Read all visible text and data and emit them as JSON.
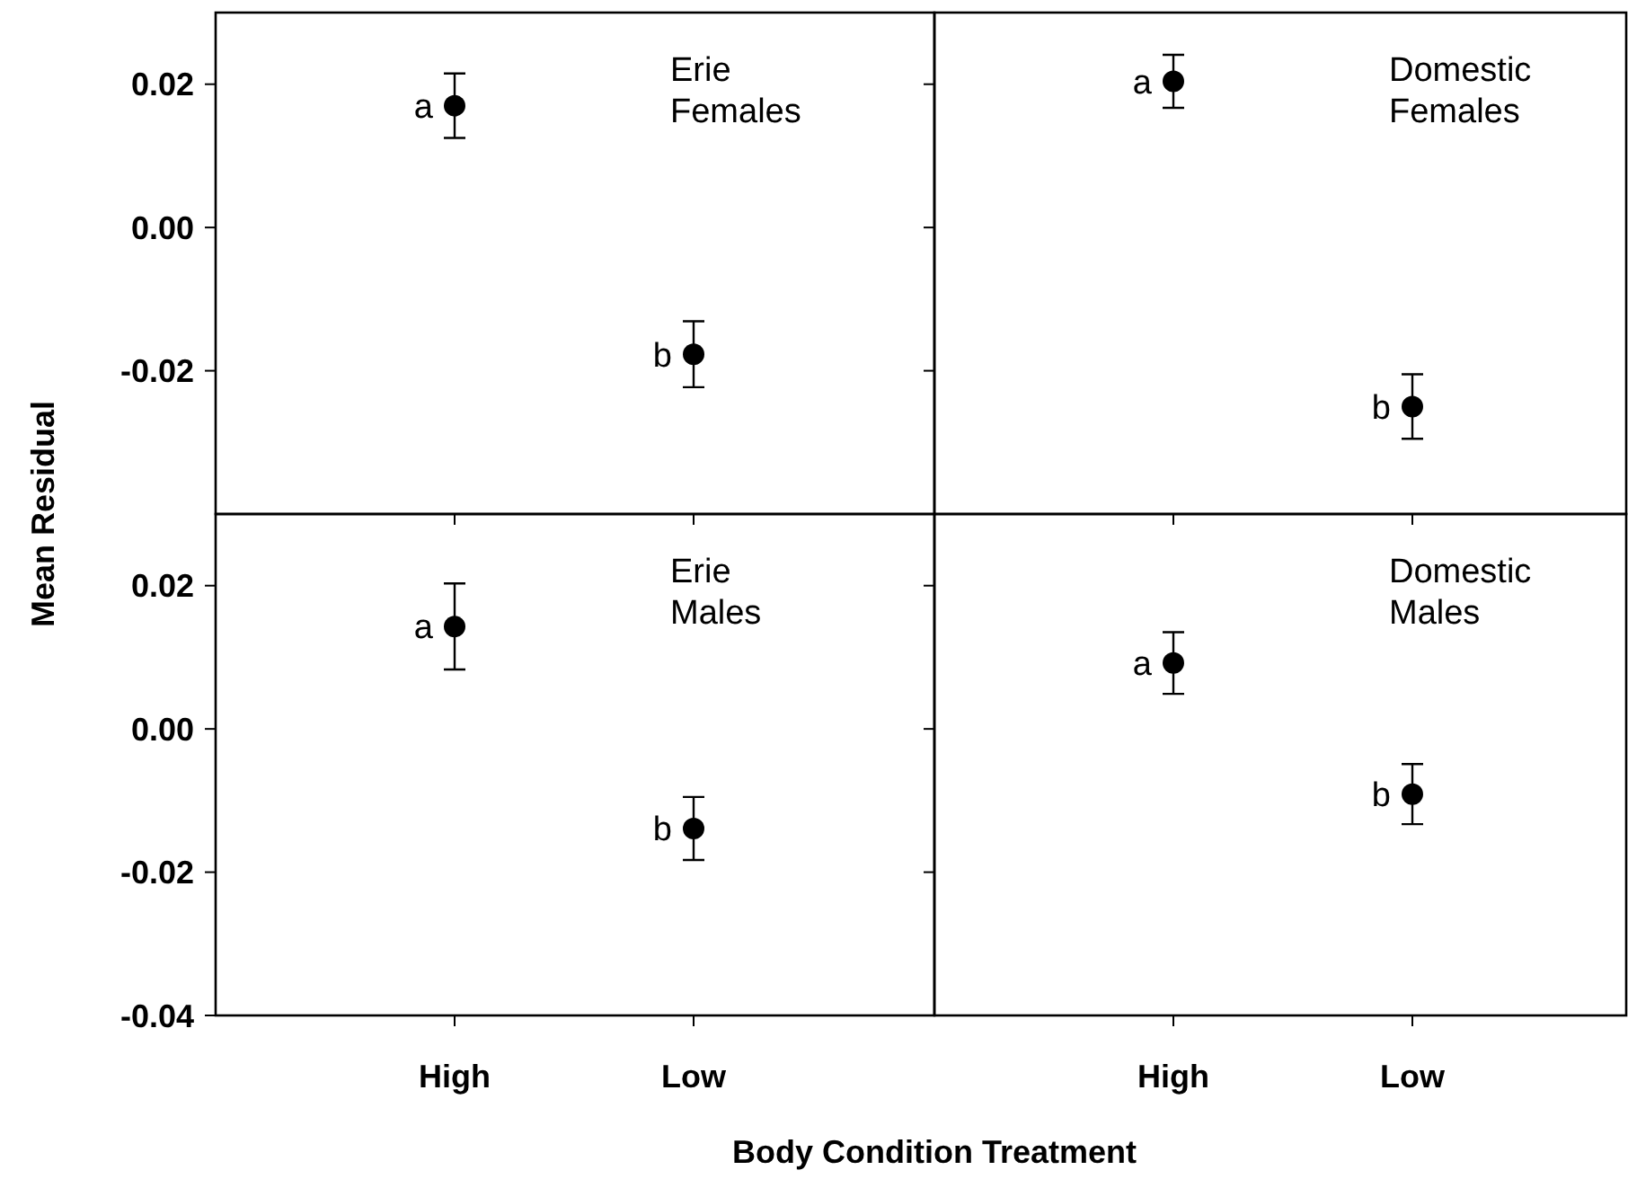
{
  "chart_data": [
    {
      "type": "scatter",
      "title": "Erie Females",
      "ylabel": "Mean Residual",
      "categories": [
        "High",
        "Low"
      ],
      "series": [
        {
          "color": "#000000",
          "values": [
            0.017,
            -0.0177
          ],
          "errors": [
            0.0045,
            0.0046
          ]
        }
      ],
      "ylim": [
        -0.04,
        0.03
      ],
      "yticks": [
        0.02,
        {
          "value": 0,
          "label": "0.00"
        },
        -0.02
      ],
      "tick_labels": "y",
      "marker": "circle",
      "annotations": [
        {
          "text": "a",
          "x": "High",
          "y": 0.017
        },
        {
          "text": "b",
          "x": "Low",
          "y": -0.0177
        }
      ]
    },
    {
      "type": "scatter",
      "title": "Domestic Females",
      "categories": [
        "High",
        "Low"
      ],
      "series": [
        {
          "color": "#000000",
          "values": [
            0.0204,
            -0.025
          ],
          "errors": [
            0.0037,
            0.0045
          ]
        }
      ],
      "ylim": [
        -0.04,
        0.03
      ],
      "yticks": [
        0.02,
        0,
        -0.02
      ],
      "tick_labels": false,
      "marker": "circle",
      "annotations": [
        {
          "text": "a",
          "x": "High",
          "y": 0.0204
        },
        {
          "text": "b",
          "x": "Low",
          "y": -0.025
        }
      ]
    },
    {
      "type": "scatter",
      "title": "Erie Males",
      "xlabel": "Body Condition Treatment",
      "categories": [
        "High",
        "Low"
      ],
      "series": [
        {
          "color": "#000000",
          "values": [
            0.0143,
            -0.0139
          ],
          "errors": [
            0.006,
            0.0044
          ]
        }
      ],
      "ylim": [
        -0.04,
        0.03
      ],
      "yticks": [
        0.02,
        {
          "value": 0,
          "label": "0.00"
        },
        -0.02,
        -0.04
      ],
      "marker": "circle",
      "annotations": [
        {
          "text": "a",
          "x": "High",
          "y": 0.0143
        },
        {
          "text": "b",
          "x": "Low",
          "y": -0.0139
        }
      ]
    },
    {
      "type": "scatter",
      "title": "Domestic Males",
      "categories": [
        "High",
        "Low"
      ],
      "series": [
        {
          "color": "#000000",
          "values": [
            0.0092,
            -0.0091
          ],
          "errors": [
            0.0043,
            0.0042
          ]
        }
      ],
      "ylim": [
        -0.04,
        0.03
      ],
      "yticks": [
        0.02,
        0,
        -0.02
      ],
      "tick_labels": "x",
      "marker": "circle",
      "annotations": [
        {
          "text": "a",
          "x": "High",
          "y": 0.0092
        },
        {
          "text": "b",
          "x": "Low",
          "y": -0.0091
        }
      ]
    }
  ]
}
